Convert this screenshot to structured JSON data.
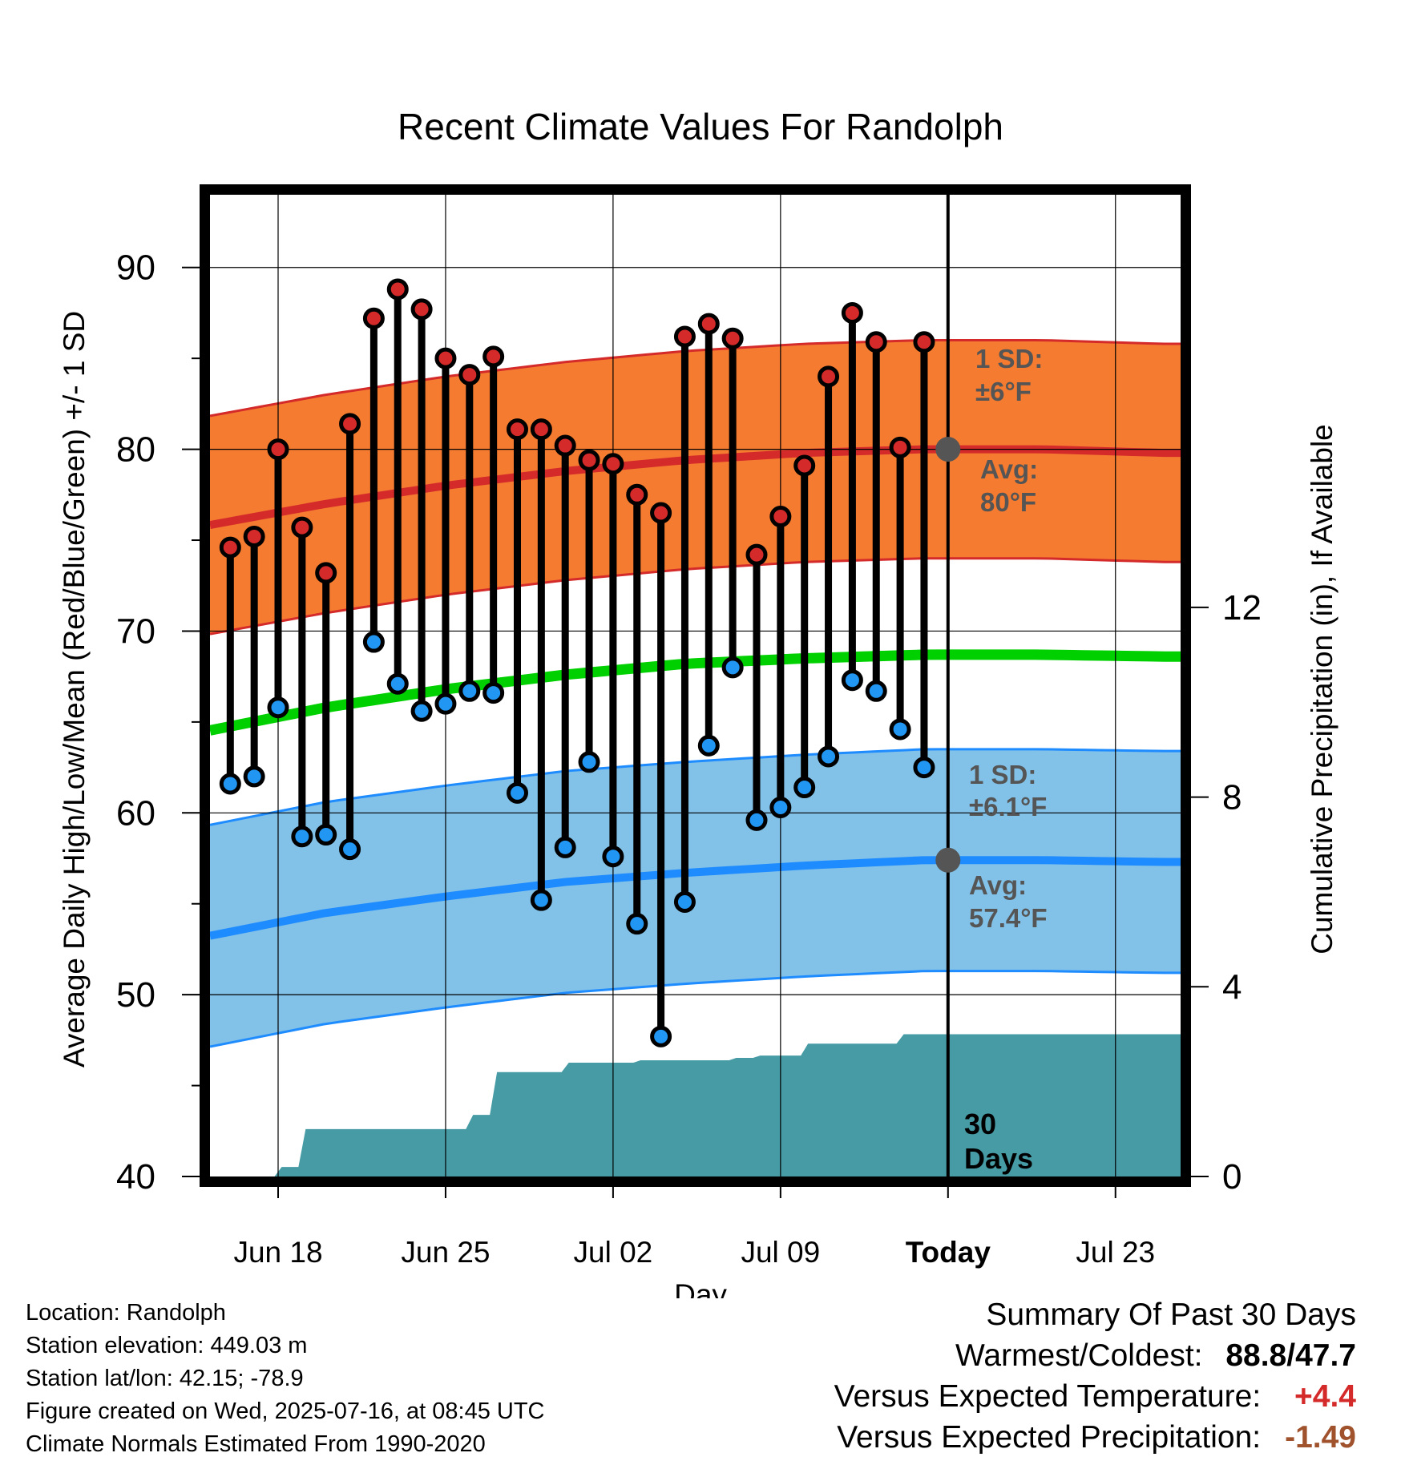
{
  "title": "Recent Climate Values For Randolph",
  "xlabel": "Day",
  "ylabel_left": "Average Daily High/Low/Mean (Red/Blue/Green) +/- 1 SD",
  "ylabel_right": "Cumulative Precipitation (in), If Available",
  "annotations": {
    "high_sd_line1": "1 SD:",
    "high_sd_line2": "±6°F",
    "high_avg_line1": "Avg:",
    "high_avg_line2": "80°F",
    "low_sd_line1": "1 SD:",
    "low_sd_line2": "±6.1°F",
    "low_avg_line1": "Avg:",
    "low_avg_line2": "57.4°F",
    "period_line1": "30",
    "period_line2": "Days"
  },
  "location_info": {
    "location": "Location: Randolph",
    "elevation": "Station elevation: 449.03 m",
    "latlon": "Station lat/lon: 42.15; -78.9",
    "created": "Figure created on Wed, 2025-07-16, at 08:45 UTC",
    "normals": "Climate Normals Estimated From 1990-2020"
  },
  "summary": {
    "heading": "Summary Of Past 30 Days",
    "warm_cold_label": "Warmest/Coldest:",
    "warm_cold_value": "88.8/47.7",
    "temp_label": "Versus Expected Temperature:",
    "temp_value": "+4.4",
    "precip_label": "Versus Expected Precipitation:",
    "precip_value": "-1.49"
  },
  "colors": {
    "high_band": "#f47b30",
    "high_line": "#d42a2a",
    "low_band": "#82c1e8",
    "low_line": "#1e8cff",
    "mean_line": "#00d000",
    "precip_fill": "#469ba5",
    "high_dot": "#d42a2a",
    "low_dot": "#2196f3",
    "temp_anomaly": "#d42a2a",
    "precip_anomaly": "#a0522d",
    "annotation_text": "#555555"
  },
  "chart_data": {
    "type": "line",
    "title": "Recent Climate Values For Randolph",
    "xlabel": "Day",
    "ylabel": "Average Daily High/Low/Mean (Red/Blue/Green) +/- 1 SD",
    "y2label": "Cumulative Precipitation (in), If Available",
    "x_ticks": [
      "Jun 18",
      "Jun 25",
      "Jul 02",
      "Jul 09",
      "Today",
      "Jul 23"
    ],
    "today_date": "Jul 16",
    "ylim": [
      40,
      94
    ],
    "y_ticks": [
      40,
      50,
      60,
      70,
      80,
      90
    ],
    "y2lim": [
      0,
      20.7
    ],
    "y2_ticks": [
      0,
      4,
      8,
      12
    ],
    "grid": true,
    "observed": {
      "dates": [
        "Jun 16",
        "Jun 17",
        "Jun 18",
        "Jun 19",
        "Jun 20",
        "Jun 21",
        "Jun 22",
        "Jun 23",
        "Jun 24",
        "Jun 25",
        "Jun 26",
        "Jun 27",
        "Jun 28",
        "Jun 29",
        "Jun 30",
        "Jul 01",
        "Jul 02",
        "Jul 03",
        "Jul 04",
        "Jul 05",
        "Jul 06",
        "Jul 07",
        "Jul 08",
        "Jul 09",
        "Jul 10",
        "Jul 11",
        "Jul 12",
        "Jul 13",
        "Jul 14",
        "Jul 15"
      ],
      "high": [
        74.6,
        75.2,
        80.0,
        75.7,
        73.2,
        81.4,
        87.2,
        88.8,
        87.7,
        85.0,
        84.1,
        85.1,
        81.1,
        81.1,
        80.2,
        79.4,
        79.2,
        77.5,
        76.5,
        86.2,
        86.9,
        86.1,
        74.2,
        76.3,
        79.1,
        84.0,
        87.5,
        85.9,
        80.1,
        85.9
      ],
      "low": [
        61.6,
        62.0,
        65.8,
        58.7,
        58.8,
        58.0,
        69.4,
        67.1,
        65.6,
        66.0,
        66.7,
        66.6,
        61.1,
        55.2,
        58.1,
        62.8,
        57.6,
        53.9,
        47.7,
        55.1,
        63.7,
        68.0,
        59.6,
        60.3,
        61.4,
        63.1,
        67.3,
        66.7,
        64.6,
        62.5
      ]
    },
    "normals": {
      "dates": [
        "Jun 15",
        "Jun 20",
        "Jun 25",
        "Jun 30",
        "Jul 05",
        "Jul 10",
        "Jul 15",
        "Jul 20",
        "Jul 25"
      ],
      "high_mean": [
        75.8,
        77.0,
        78.0,
        78.8,
        79.4,
        79.8,
        80.0,
        80.0,
        79.8
      ],
      "high_sd": 6.0,
      "low_mean": [
        53.2,
        54.5,
        55.4,
        56.2,
        56.7,
        57.1,
        57.4,
        57.4,
        57.3
      ],
      "low_sd": 6.1,
      "mean": [
        64.5,
        65.8,
        66.8,
        67.6,
        68.2,
        68.5,
        68.7,
        68.7,
        68.6
      ]
    },
    "precipitation": {
      "dates": [
        "Jun 16",
        "Jun 17",
        "Jun 18",
        "Jun 19",
        "Jun 20",
        "Jun 21",
        "Jun 22",
        "Jun 23",
        "Jun 24",
        "Jun 25",
        "Jun 26",
        "Jun 27",
        "Jun 28",
        "Jun 29",
        "Jun 30",
        "Jul 01",
        "Jul 02",
        "Jul 03",
        "Jul 04",
        "Jul 05",
        "Jul 06",
        "Jul 07",
        "Jul 08",
        "Jul 09",
        "Jul 10",
        "Jul 11",
        "Jul 12",
        "Jul 13",
        "Jul 14",
        "Jul 15"
      ],
      "cumulative": [
        0.0,
        0.0,
        0.2,
        1.0,
        1.0,
        1.0,
        1.0,
        1.0,
        1.0,
        1.0,
        1.3,
        2.2,
        2.2,
        2.2,
        2.4,
        2.4,
        2.4,
        2.45,
        2.45,
        2.45,
        2.45,
        2.5,
        2.55,
        2.55,
        2.8,
        2.8,
        2.8,
        2.8,
        3.0,
        3.0
      ]
    }
  }
}
